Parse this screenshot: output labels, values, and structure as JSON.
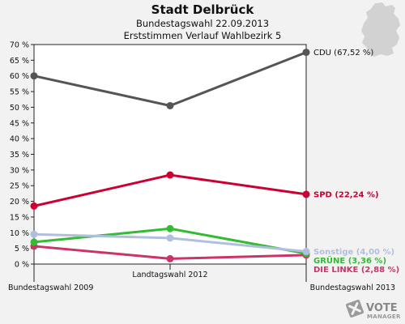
{
  "chart_data": {
    "type": "line",
    "title": "Stadt Delbrück",
    "subtitle1": "Bundestagswahl 22.09.2013",
    "subtitle2": "Erststimmen Verlauf Wahlbezirk 5",
    "categories": [
      "Bundestagswahl 2009",
      "Landtagswahl 2012",
      "Bundestagswahl 2013"
    ],
    "ylim": [
      0,
      70
    ],
    "yticks": [
      "0 %",
      "5 %",
      "10 %",
      "15 %",
      "20 %",
      "25 %",
      "30 %",
      "35 %",
      "40 %",
      "45 %",
      "50 %",
      "55 %",
      "60 %",
      "65 %",
      "70 %"
    ],
    "series": [
      {
        "name": "CDU",
        "values": [
          60.0,
          50.5,
          67.52
        ],
        "color": "#555555",
        "label": "CDU (67,52 %)"
      },
      {
        "name": "SPD",
        "values": [
          18.5,
          28.4,
          22.24
        ],
        "color": "#cc0033",
        "label": "SPD (22,24 %)"
      },
      {
        "name": "Sonstige",
        "values": [
          9.5,
          8.3,
          4.0
        ],
        "color": "#b0bfe0",
        "label": "Sonstige (4,00 %)"
      },
      {
        "name": "GRÜNE",
        "values": [
          7.0,
          11.3,
          3.36
        ],
        "color": "#33bb33",
        "label": "GRÜNE (3,36 %)"
      },
      {
        "name": "DIE LINKE",
        "values": [
          5.7,
          1.7,
          2.88
        ],
        "color": "#cc3366",
        "label": "DIE LINKE (2,88 %)"
      }
    ],
    "grid": false,
    "legend": "right end labels"
  },
  "brand": {
    "name": "VOTE",
    "tagline": "MANAGER",
    "icon": "vote-manager-logo"
  },
  "map": {
    "icon": "germany-map-icon"
  }
}
